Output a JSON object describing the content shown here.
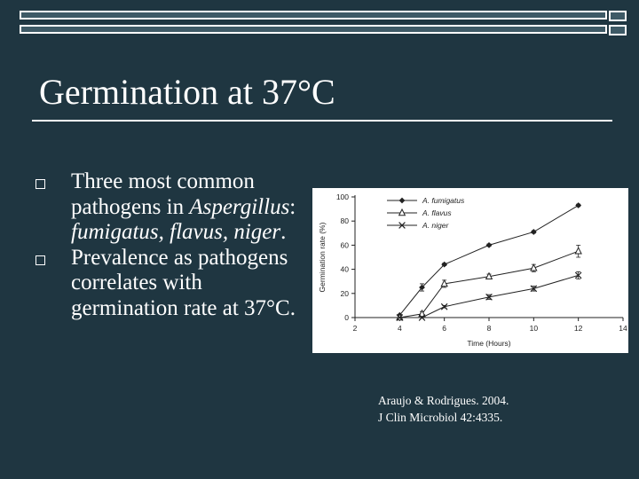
{
  "title": "Germination at 37°C",
  "bullets": [
    {
      "parts": [
        {
          "text": "Three most common pathogens in ",
          "italic": false
        },
        {
          "text": "Aspergillus",
          "italic": true
        },
        {
          "text": ": ",
          "italic": false
        },
        {
          "text": "fumigatus, flavus, niger",
          "italic": true
        },
        {
          "text": ".",
          "italic": false
        }
      ]
    },
    {
      "parts": [
        {
          "text": "Prevalence as pathogens correlates with germination rate at 37°C.",
          "italic": false
        }
      ]
    }
  ],
  "citation": {
    "line1": "Araujo & Rodrigues. 2004.",
    "line2": "J Clin Microbiol 42:4335."
  },
  "chart_data": {
    "type": "line",
    "xlabel": "Time (Hours)",
    "ylabel": "Germination rate (%)",
    "xlim": [
      2,
      14
    ],
    "ylim": [
      0,
      100
    ],
    "xticks": [
      2,
      4,
      6,
      8,
      10,
      12,
      14
    ],
    "yticks": [
      0,
      20,
      40,
      60,
      80,
      100
    ],
    "legend_position": "top-left",
    "series": [
      {
        "name": "A. fumigatus",
        "marker": "diamond",
        "x": [
          4,
          5,
          6,
          8,
          10,
          12
        ],
        "y": [
          2,
          25,
          44,
          60,
          71,
          93
        ],
        "err": [
          0,
          3,
          1,
          1,
          1,
          1
        ]
      },
      {
        "name": "A. flavus",
        "marker": "triangle",
        "x": [
          4,
          5,
          6,
          8,
          10,
          12
        ],
        "y": [
          0,
          3,
          28,
          34,
          41,
          55
        ],
        "err": [
          0,
          2,
          3,
          2,
          3,
          5
        ]
      },
      {
        "name": "A. niger",
        "marker": "x",
        "x": [
          4,
          5,
          6,
          8,
          10,
          12
        ],
        "y": [
          0,
          0,
          9,
          17,
          24,
          35
        ],
        "err": [
          0,
          0,
          1,
          2,
          2,
          3
        ]
      }
    ]
  }
}
